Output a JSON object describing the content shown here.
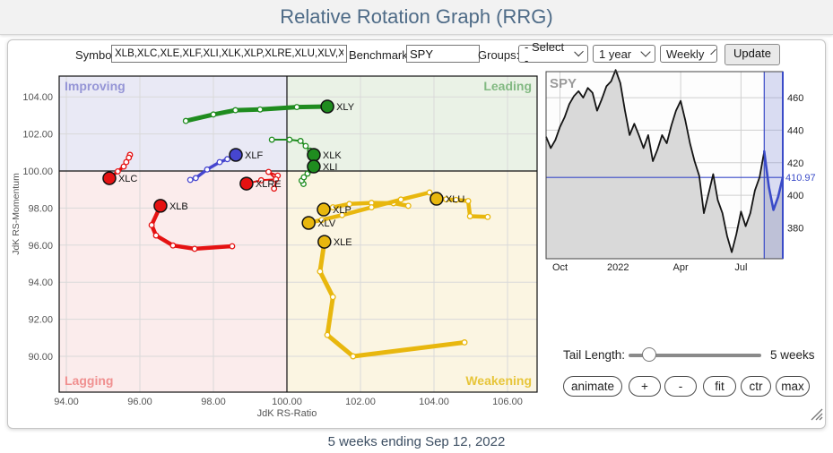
{
  "header": {
    "title": "Relative Rotation Graph (RRG)"
  },
  "toolbar": {
    "symbols_label": "Symbols:",
    "symbols_value": "XLB,XLC,XLE,XLF,XLI,XLK,XLP,XLRE,XLU,XLV,XL",
    "benchmark_label": "Benchmark:",
    "benchmark_value": "SPY",
    "groups_label": "Groups:",
    "groups_value": "- Select -",
    "period_value": "1 year",
    "frequency_value": "Weekly",
    "update_label": "Update"
  },
  "controls": {
    "tail_length_label": "Tail Length:",
    "tail_length_value": "5 weeks",
    "buttons": [
      "animate",
      "+",
      "-",
      "fit",
      "ctr",
      "max"
    ]
  },
  "footer": {
    "caption": "5 weeks ending Sep 12, 2022"
  },
  "chart_data": [
    {
      "type": "scatter",
      "title": "Relative Rotation Graph",
      "xlabel": "JdK RS-Ratio",
      "ylabel": "JdK RS-Momentum",
      "xlim": [
        93.8,
        106.8
      ],
      "ylim": [
        88.0,
        105.1
      ],
      "xticks": [
        94,
        96,
        98,
        100,
        102,
        104,
        106
      ],
      "yticks": [
        90,
        92,
        94,
        96,
        98,
        100,
        102,
        104
      ],
      "center": [
        100,
        100
      ],
      "grid": true,
      "quadrants": [
        {
          "name": "Improving",
          "pos": "top-left",
          "bg": "#e9e9f5",
          "label_color": "#9595d6"
        },
        {
          "name": "Leading",
          "pos": "top-right",
          "bg": "#eaf2e6",
          "label_color": "#82b982"
        },
        {
          "name": "Lagging",
          "pos": "bottom-left",
          "bg": "#fbecec",
          "label_color": "#f09090"
        },
        {
          "name": "Weakening",
          "pos": "bottom-right",
          "bg": "#fbf5e2",
          "label_color": "#e7c53a"
        }
      ],
      "series": [
        {
          "name": "XLB",
          "color": "#e51212",
          "width": 4.5,
          "head": [
            96.56,
            98.12
          ],
          "tail": [
            [
              98.51,
              95.94
            ],
            [
              97.49,
              95.8
            ],
            [
              96.9,
              95.98
            ],
            [
              96.44,
              96.52
            ],
            [
              96.32,
              97.08
            ]
          ]
        },
        {
          "name": "XLC",
          "color": "#e51212",
          "width": 3.5,
          "head": [
            95.17,
            99.61
          ],
          "tail": [
            [
              95.73,
              100.87
            ],
            [
              95.7,
              100.72
            ],
            [
              95.63,
              100.48
            ],
            [
              95.56,
              100.24
            ],
            [
              95.4,
              99.98
            ]
          ]
        },
        {
          "name": "XLRE",
          "color": "#e51212",
          "width": 2,
          "head": [
            98.9,
            99.32
          ],
          "tail": [
            [
              99.65,
              99.05
            ],
            [
              99.75,
              99.75
            ],
            [
              99.5,
              99.95
            ],
            [
              99.7,
              99.55
            ],
            [
              99.3,
              99.5
            ]
          ]
        },
        {
          "name": "XLF",
          "color": "#4646cf",
          "width": 3.5,
          "head": [
            98.61,
            100.87
          ],
          "tail": [
            [
              97.37,
              99.52
            ],
            [
              97.52,
              99.62
            ],
            [
              97.83,
              100.08
            ],
            [
              98.17,
              100.48
            ],
            [
              98.38,
              100.64
            ]
          ]
        },
        {
          "name": "XLY",
          "color": "#1f8c1f",
          "width": 5,
          "head": [
            101.1,
            103.48
          ],
          "tail": [
            [
              97.25,
              102.7
            ],
            [
              98.0,
              103.05
            ],
            [
              98.6,
              103.28
            ],
            [
              99.27,
              103.32
            ],
            [
              100.27,
              103.45
            ]
          ]
        },
        {
          "name": "XLK",
          "color": "#1f8c1f",
          "width": 2,
          "head": [
            100.73,
            100.87
          ],
          "tail": [
            [
              99.59,
              101.69
            ],
            [
              100.07,
              101.69
            ],
            [
              100.37,
              101.62
            ],
            [
              100.51,
              101.35
            ],
            [
              100.63,
              101.1
            ]
          ]
        },
        {
          "name": "XLI",
          "color": "#1f8c1f",
          "width": 2,
          "head": [
            100.73,
            100.24
          ],
          "tail": [
            [
              100.45,
              99.3
            ],
            [
              100.4,
              99.48
            ],
            [
              100.46,
              99.66
            ],
            [
              100.56,
              99.86
            ],
            [
              100.64,
              100.04
            ]
          ]
        },
        {
          "name": "XLP",
          "color": "#e8b70e",
          "width": 4.5,
          "head": [
            101.0,
            97.92
          ],
          "tail": [
            [
              103.3,
              98.12
            ],
            [
              102.9,
              98.26
            ],
            [
              102.3,
              98.28
            ],
            [
              101.7,
              98.22
            ],
            [
              101.25,
              98.04
            ]
          ]
        },
        {
          "name": "XLV",
          "color": "#e8b70e",
          "width": 4.5,
          "head": [
            100.59,
            97.2
          ],
          "tail": [
            [
              103.88,
              98.84
            ],
            [
              103.1,
              98.46
            ],
            [
              102.3,
              98.04
            ],
            [
              101.5,
              97.62
            ],
            [
              100.95,
              97.36
            ]
          ]
        },
        {
          "name": "XLE",
          "color": "#e8b70e",
          "width": 5,
          "head": [
            101.02,
            96.18
          ],
          "tail": [
            [
              104.83,
              90.75
            ],
            [
              101.8,
              90.0
            ],
            [
              101.1,
              91.15
            ],
            [
              101.25,
              93.2
            ],
            [
              100.9,
              94.58
            ]
          ]
        },
        {
          "name": "XLU",
          "color": "#e8b70e",
          "width": 4.5,
          "head": [
            104.07,
            98.5
          ],
          "tail": [
            [
              105.46,
              97.52
            ],
            [
              104.98,
              97.56
            ],
            [
              104.93,
              98.38
            ],
            [
              104.6,
              98.44
            ],
            [
              104.33,
              98.47
            ]
          ]
        }
      ]
    },
    {
      "type": "line",
      "title": "SPY",
      "values": [
        436,
        429,
        434,
        442,
        448,
        456,
        461,
        464,
        460,
        466,
        463,
        452,
        459,
        467,
        470,
        477,
        469,
        452,
        437,
        444,
        437,
        429,
        437,
        421,
        428,
        437,
        432,
        443,
        452,
        458,
        446,
        432,
        421,
        412,
        389,
        401,
        413,
        397,
        389,
        375,
        365,
        376,
        390,
        381,
        389,
        403,
        411,
        427,
        405,
        391,
        399,
        411
      ],
      "ylim": [
        361,
        476
      ],
      "yticks": [
        380,
        400,
        420,
        440,
        460
      ],
      "xticks": [
        {
          "label": "Oct",
          "idx": 3
        },
        {
          "label": "2022",
          "idx": 15.5
        },
        {
          "label": "Apr",
          "idx": 29
        },
        {
          "label": "Jul",
          "idx": 42
        }
      ],
      "last_value": 410.97,
      "last_value_label": "410.97",
      "tail_start_idx": 47,
      "grid": true,
      "colors": {
        "line": "#141414",
        "area": "#d9d9d9",
        "tail": "#3a4bc8",
        "highlight": "rgba(110,125,210,0.25)",
        "frame": "#444444"
      }
    }
  ]
}
